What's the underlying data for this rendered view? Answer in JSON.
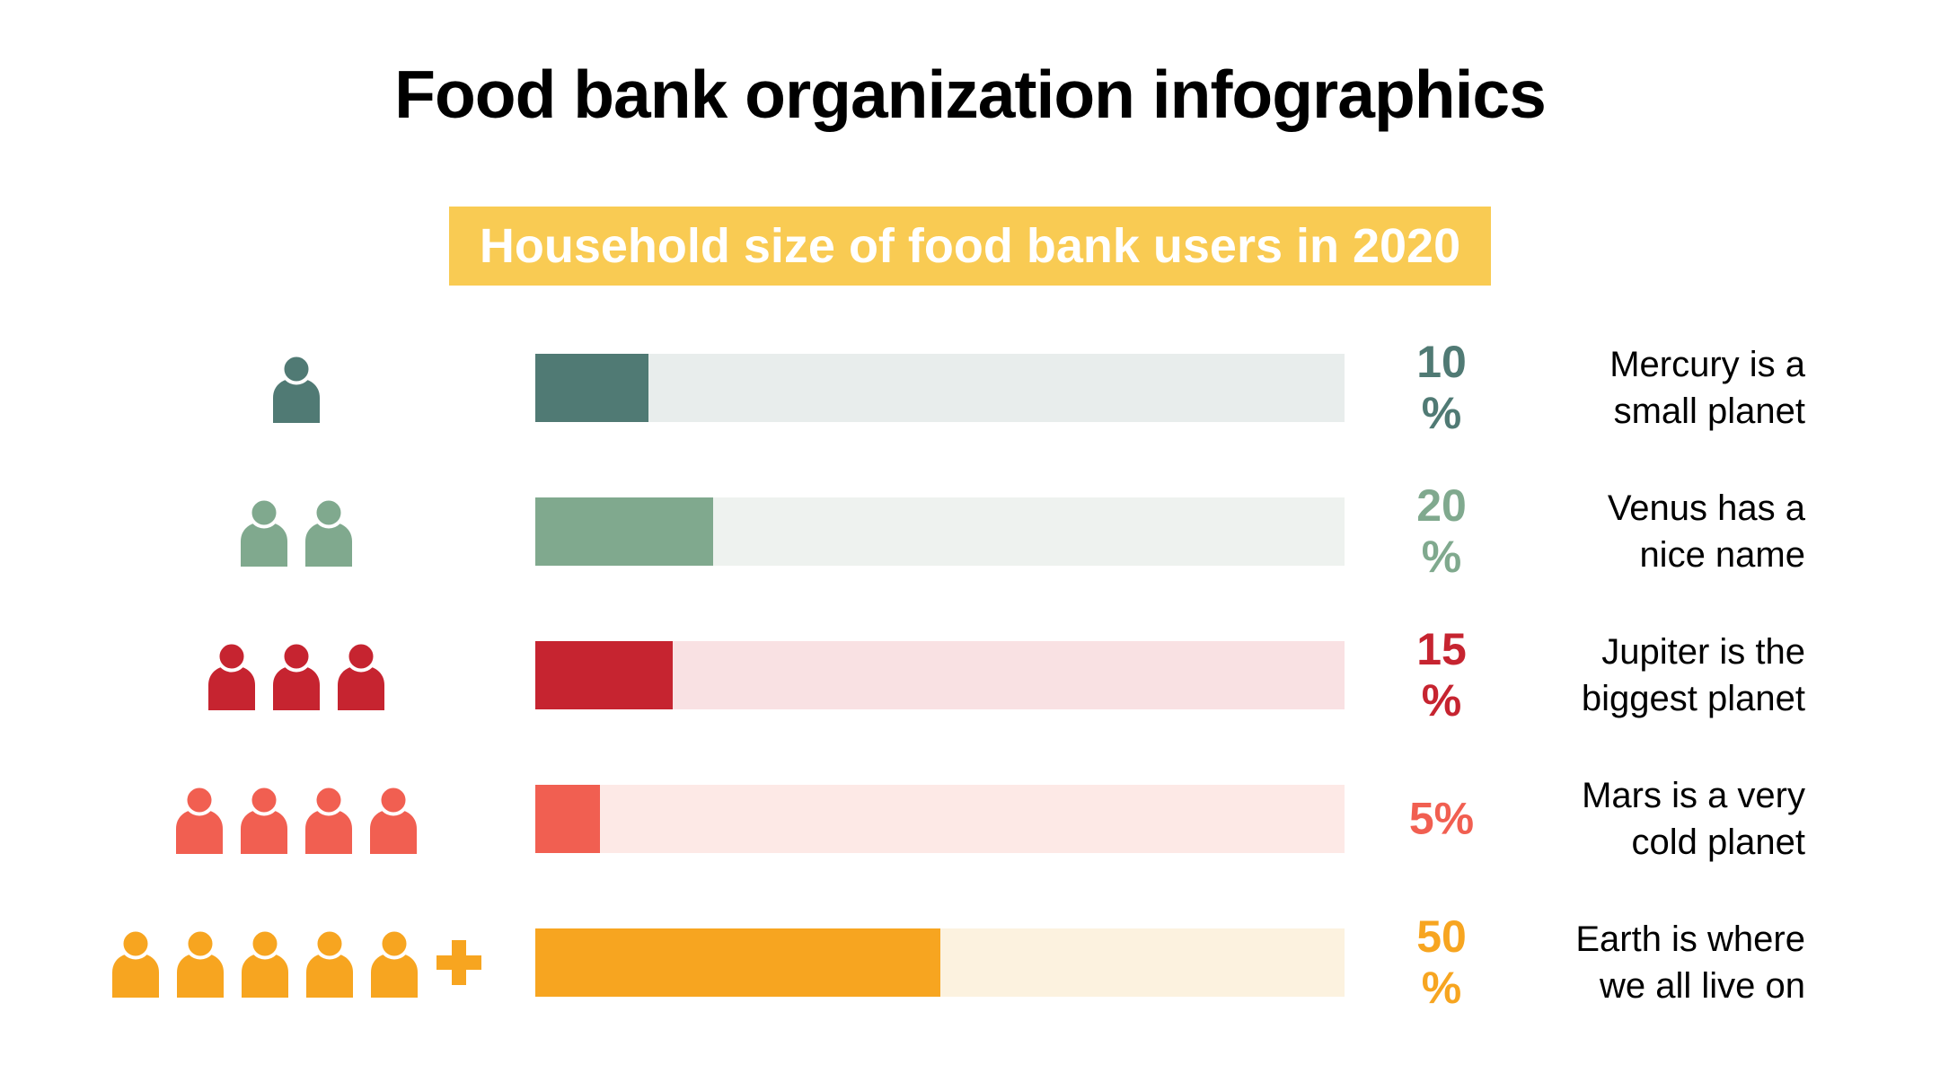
{
  "page": {
    "title": "Food bank organization infographics",
    "background_color": "#FFFFFF"
  },
  "subtitle": {
    "text": "Household size of food bank users in 2020",
    "bg_color": "#F9CB53",
    "text_color": "#FFFFFF"
  },
  "chart_data": {
    "type": "bar",
    "orientation": "horizontal",
    "title": "Household size of food bank users in 2020",
    "unit": "percent",
    "xlim": [
      0,
      100
    ],
    "grid": false,
    "legend": "none",
    "categories": [
      "1 person",
      "2 people",
      "3 people",
      "4 people",
      "5 or more people"
    ],
    "values": [
      10,
      20,
      15,
      5,
      50
    ],
    "rows": [
      {
        "household_size": 1,
        "plus": false,
        "value": 10,
        "pct_line1": "10",
        "pct_line2": "%",
        "bar_fill_display_pct": 14,
        "accent_color": "#507A74",
        "track_color": "#E8EDEC",
        "desc_line1": "Mercury is a",
        "desc_line2": "small planet"
      },
      {
        "household_size": 2,
        "plus": false,
        "value": 20,
        "pct_line1": "20",
        "pct_line2": "%",
        "bar_fill_display_pct": 22,
        "accent_color": "#80A98E",
        "track_color": "#EEF2EF",
        "desc_line1": "Venus has a",
        "desc_line2": "nice name"
      },
      {
        "household_size": 3,
        "plus": false,
        "value": 15,
        "pct_line1": "15",
        "pct_line2": "%",
        "bar_fill_display_pct": 17,
        "accent_color": "#C62430",
        "track_color": "#F9E1E3",
        "desc_line1": "Jupiter is the",
        "desc_line2": "biggest planet"
      },
      {
        "household_size": 4,
        "plus": false,
        "value": 5,
        "pct_line1": "5%",
        "pct_line2": "",
        "bar_fill_display_pct": 8,
        "accent_color": "#F15F51",
        "track_color": "#FDE9E6",
        "desc_line1": "Mars is a very",
        "desc_line2": "cold planet"
      },
      {
        "household_size": 5,
        "plus": true,
        "value": 50,
        "pct_line1": "50",
        "pct_line2": "%",
        "bar_fill_display_pct": 50,
        "accent_color": "#F7A520",
        "track_color": "#FCF2DF",
        "desc_line1": "Earth is where",
        "desc_line2": "we all live on"
      }
    ]
  }
}
